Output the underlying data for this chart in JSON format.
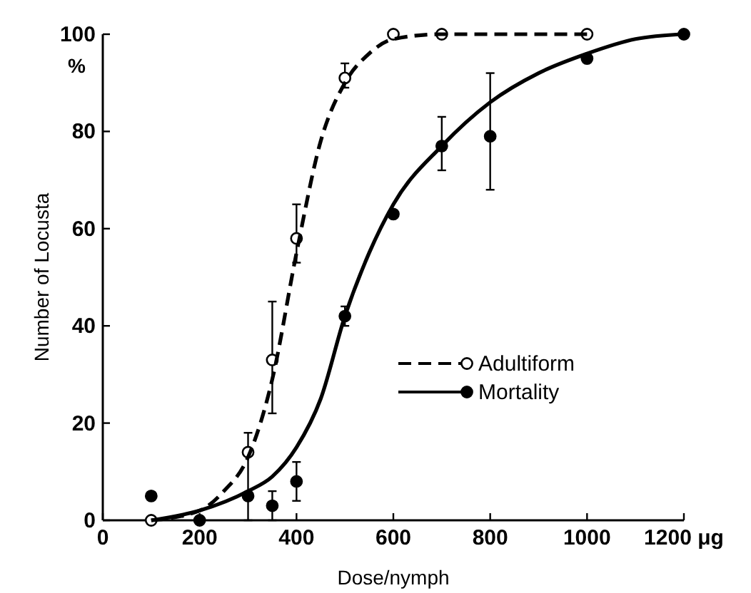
{
  "chart_data": {
    "type": "scatter",
    "xlabel": "Dose/nymph",
    "ylabel": "Number of Locusta",
    "annotations": [
      "%"
    ],
    "xlim": [
      0,
      1200
    ],
    "xticks": [
      0,
      200,
      400,
      600,
      800,
      1000,
      {
        "value": 1200,
        "label": "1200 μg"
      }
    ],
    "ylim": [
      0,
      100
    ],
    "yticks": [
      0,
      20,
      40,
      60,
      80,
      100
    ],
    "grid": false,
    "legend": "bottom right",
    "marker": "circle",
    "series": [
      {
        "name": "Adultiform",
        "color": "#ffffff",
        "x": [
          100,
          300,
          350,
          400,
          500,
          600,
          700,
          1000
        ],
        "values": [
          0,
          14,
          33,
          58,
          91,
          100,
          100,
          100
        ],
        "errors": [
          null,
          [
            0,
            18
          ],
          [
            22,
            45
          ],
          [
            53,
            65
          ],
          [
            89,
            94
          ],
          null,
          null,
          null
        ]
      },
      {
        "type": "line",
        "color": "#000000",
        "line_style": "dashed",
        "marker": "none",
        "x": [
          100,
          200,
          250,
          300,
          350,
          400,
          450,
          500,
          550,
          600,
          700,
          800,
          1000
        ],
        "values": [
          0,
          2,
          6,
          13,
          29,
          55,
          78,
          90,
          96,
          99,
          100,
          100,
          100
        ]
      },
      {
        "name": "Mortality",
        "color": "#000000",
        "x": [
          100,
          200,
          300,
          350,
          400,
          500,
          600,
          700,
          800,
          1000,
          1200
        ],
        "values": [
          5,
          0,
          5,
          3,
          8,
          42,
          63,
          77,
          79,
          95,
          100
        ],
        "errors": [
          null,
          null,
          null,
          [
            0,
            6
          ],
          [
            4,
            12
          ],
          [
            40,
            44
          ],
          null,
          [
            72,
            83
          ],
          [
            68,
            92
          ],
          null,
          null
        ]
      },
      {
        "type": "line",
        "color": "#000000",
        "line_style": "solid",
        "marker": "none",
        "x": [
          100,
          200,
          300,
          350,
          400,
          450,
          500,
          550,
          600,
          700,
          800,
          900,
          1000,
          1100,
          1200
        ],
        "values": [
          0,
          2,
          6,
          9,
          15,
          25,
          42,
          55,
          65,
          77,
          86,
          92,
          96,
          99,
          100
        ]
      }
    ]
  }
}
